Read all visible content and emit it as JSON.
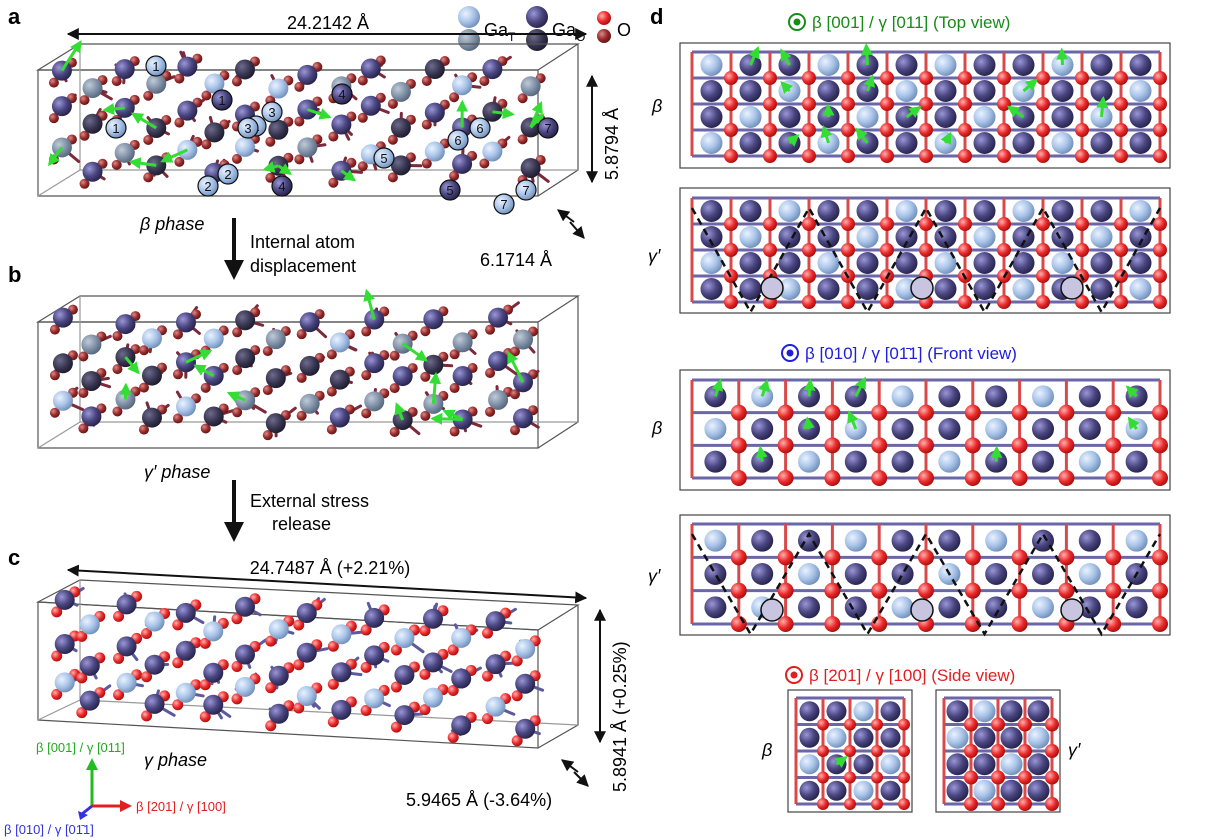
{
  "panels": {
    "a": {
      "letter": "a",
      "length": "24.2142 Å",
      "height": "5.8794 Å",
      "depth": "6.1714 Å",
      "phase": "β phase",
      "site_labels": [
        "1",
        "1",
        "1",
        "1",
        "2",
        "2",
        "3",
        "3",
        "4",
        "4",
        "5",
        "5",
        "6",
        "6",
        "7",
        "7",
        "7"
      ]
    },
    "b": {
      "letter": "b",
      "phase": "γ′ phase",
      "arrow1_line1": "Internal atom",
      "arrow1_line2": "displacement",
      "arrow2_line1": "External stress",
      "arrow2_line2": "release"
    },
    "c": {
      "letter": "c",
      "length": "24.7487 Å (+2.21%)",
      "height": "5.8941 Å (+0.25%)",
      "depth": "5.9465 Å (-3.64%)",
      "phase": "γ phase",
      "axis_green": "β [001] / γ [011]",
      "axis_red": "β [201] / γ [100]",
      "axis_blue": "β [010] / γ [01̄1]"
    },
    "d": {
      "letter": "d",
      "top_view": "β [001] / γ [011] (Top view)",
      "front_view": "β [010] / γ [01̄1] (Front view)",
      "side_view": "β [201] / γ [100] (Side view)",
      "beta": "β",
      "gamma": "γ′"
    }
  },
  "legend": {
    "ga_t": "Ga",
    "ga_t_sub": "T",
    "ga_o": "Ga",
    "ga_o_sub": "O",
    "o": "O"
  },
  "colors": {
    "ga_t": "#a9c4e8",
    "ga_o": "#4a4680",
    "o_red": "#e8262a",
    "o_dark": "#9b2b2b",
    "arrow_green": "#33dd33",
    "top_title": "#1a8a1a",
    "front_title": "#2020d8",
    "side_title": "#e02020"
  }
}
